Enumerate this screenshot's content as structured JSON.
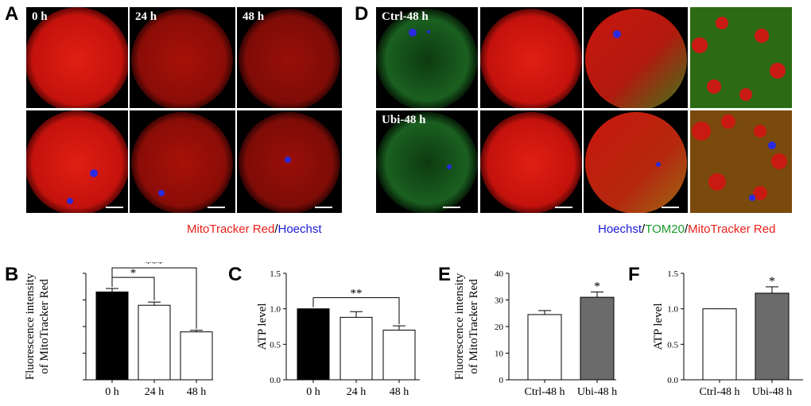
{
  "panels": {
    "A": {
      "letter": "A",
      "labels": [
        "0 h",
        "24 h",
        "48 h"
      ]
    },
    "D": {
      "letter": "D",
      "labels": [
        "Ctrl-48 h",
        "Ubi-48 h"
      ]
    },
    "B": {
      "letter": "B"
    },
    "C": {
      "letter": "C"
    },
    "E": {
      "letter": "E"
    },
    "F": {
      "letter": "F"
    }
  },
  "legend_A": {
    "part1": "MitoTracker Red",
    "sep": "/",
    "part2": "Hoechst",
    "color1": "#e8201a",
    "color2": "#1a1ad8"
  },
  "legend_D": {
    "part1": "Hoechst",
    "sep1": "/",
    "part2": "TOM20",
    "sep2": "/",
    "part3": "MitoTracker Red",
    "color1": "#1a1ad8",
    "color2": "#1a9a2a",
    "color3": "#e8201a"
  },
  "chart_data": [
    {
      "id": "B",
      "type": "bar",
      "categories": [
        "0 h",
        "24 h",
        "48 h"
      ],
      "values": [
        33,
        28,
        18
      ],
      "errors": [
        1.3,
        1.2,
        0.6
      ],
      "fills": [
        "#000000",
        "#ffffff",
        "#ffffff"
      ],
      "ylabel": "Fluorescence intensity of MitoTracker Red",
      "ylim": [
        0,
        40
      ],
      "yticks": [],
      "sig": [
        {
          "from": 0,
          "to": 1,
          "label": "*"
        },
        {
          "from": 0,
          "to": 2,
          "label": "***"
        }
      ]
    },
    {
      "id": "C",
      "type": "bar",
      "categories": [
        "0 h",
        "24 h",
        "48 h"
      ],
      "values": [
        1.0,
        0.88,
        0.7
      ],
      "errors": [
        0.0,
        0.08,
        0.06
      ],
      "fills": [
        "#000000",
        "#ffffff",
        "#ffffff"
      ],
      "ylabel": "ATP level",
      "ylim": [
        0,
        1.5
      ],
      "yticks": [
        "0.0",
        "0.5",
        "1.0",
        "1.5"
      ],
      "sig": [
        {
          "from": 0,
          "to": 2,
          "label": "**"
        }
      ]
    },
    {
      "id": "E",
      "type": "bar",
      "categories": [
        "Ctrl-48 h",
        "Ubi-48 h"
      ],
      "values": [
        24.5,
        31
      ],
      "errors": [
        1.5,
        2.0
      ],
      "fills": [
        "#ffffff",
        "#6b6b6b"
      ],
      "ylabel": "Fluorescence intensity of MitoTracker Red",
      "ylim": [
        0,
        40
      ],
      "yticks": [
        "0",
        "10",
        "20",
        "30",
        "40"
      ],
      "stars": [
        {
          "index": 1,
          "label": "*"
        }
      ]
    },
    {
      "id": "F",
      "type": "bar",
      "categories": [
        "Ctrl-48 h",
        "Ubi-48 h"
      ],
      "values": [
        1.0,
        1.22
      ],
      "errors": [
        0.0,
        0.09
      ],
      "fills": [
        "#ffffff",
        "#6b6b6b"
      ],
      "ylabel": "ATP level",
      "ylim": [
        0,
        1.5
      ],
      "yticks": [
        "0.0",
        "0.5",
        "1.0",
        "1.5"
      ],
      "stars": [
        {
          "index": 1,
          "label": "*"
        }
      ]
    }
  ]
}
